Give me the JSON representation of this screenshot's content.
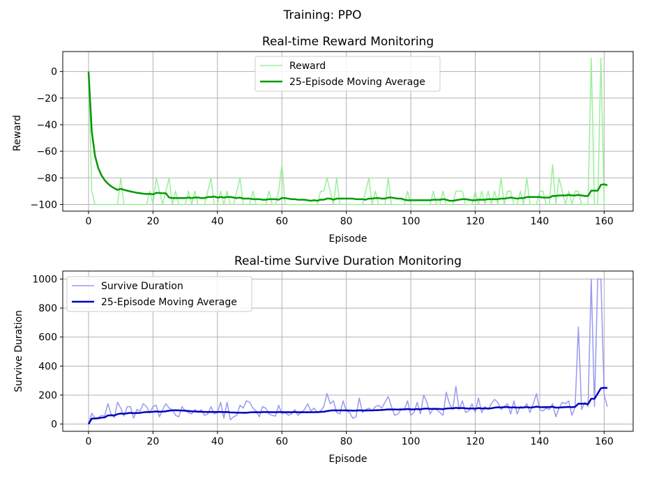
{
  "figure": {
    "suptitle": "Training: PPO"
  },
  "colors": {
    "reward_raw": "#98f098",
    "reward_avg": "#009900",
    "duration_raw": "#9898f0",
    "duration_avg": "#0000bb",
    "grid": "#b0b0b0"
  },
  "chart_data": [
    {
      "type": "line",
      "title": "Real-time Reward Monitoring",
      "xlabel": "Episode",
      "ylabel": "Reward",
      "xlim": [
        -8,
        169
      ],
      "ylim": [
        -105,
        15
      ],
      "xticks": [
        0,
        20,
        40,
        60,
        80,
        100,
        120,
        140,
        160
      ],
      "yticks": [
        0,
        -20,
        -40,
        -60,
        -80,
        -100
      ],
      "grid": true,
      "legend_position": "upper center",
      "series": [
        {
          "name": "Reward",
          "y": [
            0,
            -90,
            -100,
            -100,
            -100,
            -100,
            -100,
            -100,
            -100,
            -100,
            -80,
            -100,
            -100,
            -100,
            -100,
            -100,
            -100,
            -100,
            -100,
            -90,
            -100,
            -80,
            -90,
            -100,
            -90,
            -80,
            -100,
            -90,
            -100,
            -100,
            -100,
            -90,
            -100,
            -90,
            -100,
            -100,
            -100,
            -90,
            -80,
            -100,
            -100,
            -90,
            -100,
            -90,
            -100,
            -100,
            -90,
            -80,
            -100,
            -100,
            -100,
            -90,
            -100,
            -100,
            -100,
            -100,
            -90,
            -100,
            -100,
            -90,
            -70,
            -100,
            -100,
            -100,
            -100,
            -100,
            -100,
            -100,
            -100,
            -100,
            -100,
            -100,
            -90,
            -90,
            -80,
            -90,
            -100,
            -80,
            -100,
            -100,
            -100,
            -100,
            -100,
            -100,
            -100,
            -100,
            -90,
            -80,
            -100,
            -90,
            -100,
            -100,
            -100,
            -80,
            -100,
            -100,
            -100,
            -100,
            -100,
            -90,
            -100,
            -100,
            -100,
            -100,
            -100,
            -100,
            -100,
            -90,
            -100,
            -100,
            -90,
            -100,
            -100,
            -100,
            -90,
            -90,
            -90,
            -100,
            -100,
            -100,
            -90,
            -100,
            -90,
            -100,
            -90,
            -100,
            -90,
            -100,
            -80,
            -100,
            -90,
            -90,
            -100,
            -100,
            -90,
            -100,
            -80,
            -100,
            -100,
            -100,
            -90,
            -90,
            -100,
            -100,
            -70,
            -100,
            -80,
            -90,
            -100,
            -90,
            -100,
            -90,
            -90,
            -100,
            -100,
            -100,
            10,
            -100,
            -100,
            10,
            -100,
            -100
          ]
        },
        {
          "name": "25-Episode Moving Average",
          "y": [
            0,
            -45,
            -63.3,
            -72.5,
            -78,
            -81.7,
            -84.3,
            -86.3,
            -87.8,
            -89,
            -88.2,
            -89,
            -89.6,
            -90.2,
            -90.7,
            -91.2,
            -91.5,
            -91.9,
            -92.1,
            -92,
            -92.4,
            -91.3,
            -91.3,
            -91.6,
            -91.6,
            -94.8,
            -95.2,
            -95.2,
            -95.2,
            -95.2,
            -95.2,
            -94.8,
            -95.2,
            -94.8,
            -94.8,
            -95.2,
            -95.2,
            -94.4,
            -94.4,
            -94,
            -94.8,
            -94.4,
            -94.8,
            -94.4,
            -94.4,
            -94.8,
            -95.2,
            -94.8,
            -95.6,
            -95.6,
            -95.6,
            -96,
            -96,
            -96,
            -96.4,
            -96.4,
            -96,
            -96,
            -96,
            -96.4,
            -95.2,
            -95.2,
            -95.6,
            -96,
            -96,
            -96.4,
            -96.4,
            -96.4,
            -96.8,
            -97.2,
            -96.8,
            -97.2,
            -96.4,
            -96.4,
            -95.6,
            -95.6,
            -96.4,
            -95.6,
            -95.6,
            -95.6,
            -95.6,
            -95.6,
            -95.6,
            -96,
            -96,
            -96,
            -96.4,
            -95.6,
            -95.6,
            -95.2,
            -95.2,
            -95.6,
            -95.6,
            -94.8,
            -94.8,
            -95.2,
            -95.6,
            -95.6,
            -96.4,
            -96.8,
            -96.8,
            -96.8,
            -96.8,
            -96.8,
            -96.8,
            -96.8,
            -96.8,
            -96.4,
            -96.4,
            -96.4,
            -96,
            -96.4,
            -97.2,
            -97.2,
            -96.8,
            -96.4,
            -96,
            -96,
            -96.4,
            -96.8,
            -96.8,
            -96.4,
            -96.4,
            -96.4,
            -96,
            -96,
            -96,
            -96,
            -95.6,
            -95.6,
            -95.2,
            -94.8,
            -95.2,
            -95.6,
            -95.2,
            -95.2,
            -94.4,
            -94.4,
            -94.4,
            -94.4,
            -94.4,
            -94.8,
            -94.8,
            -94.8,
            -93.6,
            -93.6,
            -93.2,
            -93.2,
            -93.2,
            -92.8,
            -93.2,
            -93.2,
            -92.8,
            -93.2,
            -93.6,
            -93.6,
            -89.6,
            -89.6,
            -89.6,
            -85.2,
            -84.8,
            -85.6
          ]
        }
      ]
    },
    {
      "type": "line",
      "title": "Real-time Survive Duration Monitoring",
      "xlabel": "Episode",
      "ylabel": "Survive Duration",
      "xlim": [
        -8,
        169
      ],
      "ylim": [
        -50,
        1055
      ],
      "xticks": [
        0,
        20,
        40,
        60,
        80,
        100,
        120,
        140,
        160
      ],
      "yticks": [
        0,
        200,
        400,
        600,
        800,
        1000
      ],
      "grid": true,
      "legend_position": "upper left",
      "series": [
        {
          "name": "Survive Duration",
          "y": [
            0,
            75,
            40,
            45,
            60,
            55,
            140,
            70,
            45,
            150,
            110,
            55,
            120,
            120,
            40,
            100,
            90,
            140,
            120,
            80,
            120,
            130,
            50,
            100,
            140,
            110,
            100,
            60,
            50,
            120,
            90,
            80,
            70,
            100,
            80,
            100,
            60,
            70,
            120,
            70,
            80,
            150,
            40,
            150,
            30,
            50,
            60,
            130,
            110,
            160,
            150,
            110,
            90,
            50,
            120,
            110,
            70,
            60,
            55,
            130,
            70,
            80,
            60,
            70,
            100,
            60,
            80,
            100,
            140,
            90,
            110,
            80,
            90,
            120,
            210,
            140,
            160,
            80,
            70,
            160,
            90,
            80,
            40,
            50,
            180,
            80,
            100,
            110,
            90,
            120,
            130,
            110,
            150,
            190,
            120,
            60,
            70,
            100,
            100,
            160,
            60,
            80,
            150,
            70,
            200,
            150,
            70,
            110,
            100,
            80,
            60,
            220,
            140,
            100,
            260,
            100,
            160,
            80,
            90,
            140,
            80,
            180,
            80,
            120,
            100,
            140,
            170,
            150,
            100,
            120,
            140,
            70,
            160,
            70,
            120,
            110,
            140,
            80,
            140,
            210,
            100,
            90,
            110,
            100,
            140,
            50,
            110,
            150,
            140,
            160,
            60,
            120,
            670,
            100,
            150,
            120,
            1000,
            120,
            1000,
            1000,
            200,
            120
          ]
        },
        {
          "name": "25-Episode Moving Average",
          "y": [
            0,
            37.5,
            38.3,
            40,
            44,
            45.8,
            59.3,
            60.6,
            59.4,
            68.5,
            72.3,
            70.8,
            74.2,
            77.1,
            74.7,
            76.3,
            77.1,
            80.6,
            83.2,
            83,
            84.8,
            86.8,
            85.2,
            86,
            88.2,
            92.2,
            94.4,
            95.2,
            94.4,
            93,
            92.2,
            90.2,
            88,
            87.2,
            85.8,
            84.8,
            83.8,
            83,
            84,
            83.4,
            83.2,
            84,
            82,
            83.2,
            80.6,
            80,
            78.8,
            78.4,
            78.2,
            78.2,
            80.2,
            81.4,
            82.2,
            81.2,
            82.6,
            82.8,
            82.4,
            82,
            81.6,
            82.8,
            82.8,
            81.6,
            82,
            81.6,
            83.4,
            81.8,
            82.2,
            81.4,
            82,
            81.6,
            82,
            82.4,
            83.8,
            85.2,
            89.4,
            92.8,
            95,
            94.4,
            94.4,
            94.4,
            95,
            93.6,
            92.4,
            92.8,
            94.8,
            93.8,
            93.6,
            94.2,
            94,
            95.2,
            96.2,
            97.4,
            99,
            101.6,
            101,
            100.6,
            100,
            101.2,
            101.6,
            103.6,
            101.2,
            101.2,
            104,
            101.6,
            105.6,
            107,
            104.4,
            104.4,
            104.8,
            104,
            102.8,
            107,
            108.8,
            108.4,
            111.4,
            110,
            110.8,
            108.6,
            107,
            107.8,
            105.8,
            110.2,
            107.4,
            108.6,
            107.2,
            108.8,
            113.2,
            115.6,
            114.6,
            117.2,
            117.6,
            114,
            115.6,
            113.2,
            114.8,
            114.2,
            117.4,
            113.6,
            115.8,
            120,
            117,
            116.4,
            117.2,
            116.8,
            119.2,
            113.6,
            113.6,
            115.6,
            117.2,
            118.2,
            116.4,
            118.8,
            140.2,
            140.2,
            140.4,
            138,
            174.8,
            174.8,
            210.4,
            247.2,
            250.4,
            249.2
          ]
        }
      ]
    }
  ]
}
